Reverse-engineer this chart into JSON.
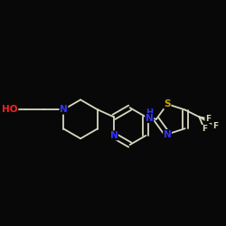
{
  "background_color": "#080808",
  "bond_color": "#d8d8c0",
  "atom_colors": {
    "N": "#3333ff",
    "O": "#ff2020",
    "S": "#ccaa00",
    "F": "#d8d8c0",
    "C": "#d8d8c0",
    "H": "#d8d8c0"
  },
  "bond_width": 1.3,
  "font_size": 7.5,
  "fig_size": [
    2.5,
    2.5
  ],
  "dpi": 100,
  "figsize_inches": [
    2.5,
    2.5
  ]
}
